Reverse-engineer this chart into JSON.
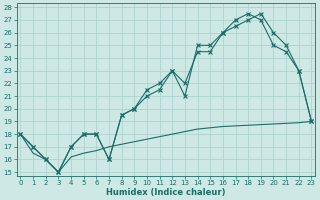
{
  "title": "",
  "xlabel": "Humidex (Indice chaleur)",
  "background_color": "#cde8e5",
  "grid_color": "#aacfcc",
  "line_color": "#1a6e66",
  "x": [
    0,
    1,
    2,
    3,
    4,
    5,
    6,
    7,
    8,
    9,
    10,
    11,
    12,
    13,
    14,
    15,
    16,
    17,
    18,
    19,
    20,
    21,
    22,
    23
  ],
  "line1": [
    18,
    17,
    16,
    15,
    17,
    18,
    18,
    16,
    19.5,
    20,
    21.5,
    22,
    23,
    22,
    24.5,
    24.5,
    26,
    26.5,
    27,
    27.5,
    26,
    25,
    23,
    19
  ],
  "line2": [
    18,
    17,
    16,
    15,
    17,
    18,
    18,
    16,
    19.5,
    20,
    21,
    21.5,
    23,
    21,
    25,
    25,
    26,
    27,
    27.5,
    27,
    25,
    24.5,
    23,
    19
  ],
  "line3": [
    18,
    16.5,
    16,
    15,
    16.2,
    16.5,
    16.7,
    17,
    17.2,
    17.4,
    17.6,
    17.8,
    18.0,
    18.2,
    18.4,
    18.5,
    18.6,
    18.65,
    18.7,
    18.75,
    18.8,
    18.85,
    18.9,
    19
  ],
  "ylim_min": 15,
  "ylim_max": 28,
  "yticks": [
    15,
    16,
    17,
    18,
    19,
    20,
    21,
    22,
    23,
    24,
    25,
    26,
    27,
    28
  ],
  "xticks": [
    0,
    1,
    2,
    3,
    4,
    5,
    6,
    7,
    8,
    9,
    10,
    11,
    12,
    13,
    14,
    15,
    16,
    17,
    18,
    19,
    20,
    21,
    22,
    23
  ],
  "tick_fontsize": 5,
  "xlabel_fontsize": 6
}
